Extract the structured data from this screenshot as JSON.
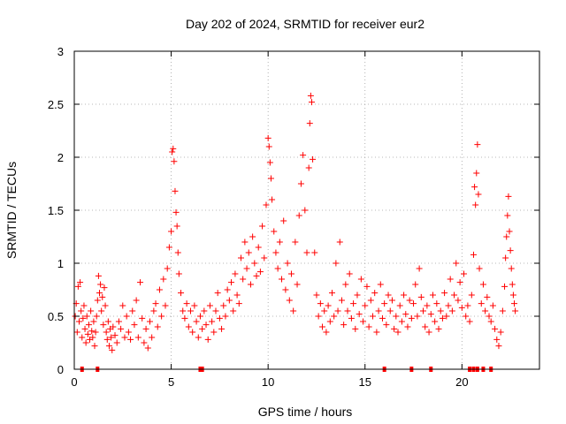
{
  "chart_data": {
    "type": "scatter",
    "title": "Day 202 of 2024, SRMTID for receiver eur2",
    "xlabel": "GPS time / hours",
    "ylabel": "SRMTID / TECUs",
    "xlim": [
      0,
      24
    ],
    "ylim": [
      0,
      3
    ],
    "xticks": [
      0,
      5,
      10,
      15,
      20
    ],
    "yticks": [
      0,
      0.5,
      1,
      1.5,
      2,
      2.5,
      3
    ],
    "xtick_labels": [
      "0",
      "5",
      "10",
      "15",
      "20"
    ],
    "ytick_labels": [
      "0",
      "0.5",
      "1",
      "1.5",
      "2",
      "2.5",
      "3"
    ],
    "grid": true,
    "marker": "+",
    "color": "#ff0000",
    "series": [
      {
        "name": "eur2",
        "points": [
          [
            0.05,
            0.5
          ],
          [
            0.1,
            0.62
          ],
          [
            0.15,
            0.35
          ],
          [
            0.2,
            0.78
          ],
          [
            0.25,
            0.45
          ],
          [
            0.3,
            0.82
          ],
          [
            0.35,
            0.55
          ],
          [
            0.4,
            0.3
          ],
          [
            0.45,
            0.48
          ],
          [
            0.5,
            0.6
          ],
          [
            0.55,
            0.38
          ],
          [
            0.6,
            0.25
          ],
          [
            0.65,
            0.5
          ],
          [
            0.7,
            0.33
          ],
          [
            0.75,
            0.42
          ],
          [
            0.8,
            0.28
          ],
          [
            0.85,
            0.55
          ],
          [
            0.9,
            0.36
          ],
          [
            0.95,
            0.3
          ],
          [
            1.0,
            0.45
          ],
          [
            1.05,
            0.22
          ],
          [
            1.1,
            0.35
          ],
          [
            1.15,
            0.5
          ],
          [
            1.2,
            0.65
          ],
          [
            1.25,
            0.88
          ],
          [
            1.3,
            0.72
          ],
          [
            1.35,
            0.8
          ],
          [
            1.4,
            0.55
          ],
          [
            1.45,
            0.68
          ],
          [
            1.5,
            0.42
          ],
          [
            1.55,
            0.77
          ],
          [
            1.6,
            0.6
          ],
          [
            1.65,
            0.35
          ],
          [
            1.7,
            0.28
          ],
          [
            1.75,
            0.45
          ],
          [
            1.8,
            0.22
          ],
          [
            1.85,
            0.38
          ],
          [
            1.9,
            0.3
          ],
          [
            1.95,
            0.18
          ],
          [
            2.0,
            0.4
          ],
          [
            2.1,
            0.32
          ],
          [
            2.2,
            0.25
          ],
          [
            2.3,
            0.45
          ],
          [
            2.4,
            0.38
          ],
          [
            2.5,
            0.6
          ],
          [
            2.6,
            0.3
          ],
          [
            2.7,
            0.5
          ],
          [
            2.8,
            0.35
          ],
          [
            2.9,
            0.28
          ],
          [
            3.0,
            0.55
          ],
          [
            3.1,
            0.42
          ],
          [
            3.2,
            0.65
          ],
          [
            3.3,
            0.3
          ],
          [
            3.4,
            0.82
          ],
          [
            3.5,
            0.48
          ],
          [
            3.6,
            0.25
          ],
          [
            3.7,
            0.38
          ],
          [
            3.8,
            0.2
          ],
          [
            3.9,
            0.45
          ],
          [
            4.0,
            0.3
          ],
          [
            4.1,
            0.55
          ],
          [
            4.2,
            0.62
          ],
          [
            4.3,
            0.4
          ],
          [
            4.4,
            0.75
          ],
          [
            4.5,
            0.5
          ],
          [
            4.6,
            0.85
          ],
          [
            4.7,
            0.6
          ],
          [
            4.8,
            0.95
          ],
          [
            4.9,
            1.15
          ],
          [
            5.0,
            1.3
          ],
          [
            5.05,
            2.05
          ],
          [
            5.1,
            2.08
          ],
          [
            5.15,
            1.96
          ],
          [
            5.2,
            1.68
          ],
          [
            5.25,
            1.48
          ],
          [
            5.3,
            1.35
          ],
          [
            5.35,
            1.1
          ],
          [
            5.4,
            0.9
          ],
          [
            5.5,
            0.72
          ],
          [
            5.6,
            0.55
          ],
          [
            5.7,
            0.48
          ],
          [
            5.8,
            0.62
          ],
          [
            5.9,
            0.4
          ],
          [
            6.0,
            0.55
          ],
          [
            6.1,
            0.35
          ],
          [
            6.2,
            0.6
          ],
          [
            6.3,
            0.45
          ],
          [
            6.4,
            0.3
          ],
          [
            6.5,
            0.5
          ],
          [
            6.6,
            0.38
          ],
          [
            6.7,
            0.55
          ],
          [
            6.8,
            0.42
          ],
          [
            6.9,
            0.28
          ],
          [
            7.0,
            0.6
          ],
          [
            7.1,
            0.45
          ],
          [
            7.2,
            0.35
          ],
          [
            7.3,
            0.55
          ],
          [
            7.4,
            0.72
          ],
          [
            7.5,
            0.48
          ],
          [
            7.6,
            0.38
          ],
          [
            7.7,
            0.6
          ],
          [
            7.8,
            0.5
          ],
          [
            7.9,
            0.75
          ],
          [
            8.0,
            0.65
          ],
          [
            8.1,
            0.82
          ],
          [
            8.2,
            0.55
          ],
          [
            8.3,
            0.9
          ],
          [
            8.4,
            0.7
          ],
          [
            8.5,
            0.62
          ],
          [
            8.6,
            1.05
          ],
          [
            8.7,
            0.85
          ],
          [
            8.8,
            1.2
          ],
          [
            8.9,
            0.95
          ],
          [
            9.0,
            1.1
          ],
          [
            9.1,
            0.8
          ],
          [
            9.2,
            1.25
          ],
          [
            9.3,
            1.0
          ],
          [
            9.4,
            0.88
          ],
          [
            9.5,
            1.15
          ],
          [
            9.6,
            0.92
          ],
          [
            9.7,
            1.35
          ],
          [
            9.8,
            1.05
          ],
          [
            9.9,
            1.55
          ],
          [
            10.0,
            2.18
          ],
          [
            10.05,
            2.1
          ],
          [
            10.1,
            1.95
          ],
          [
            10.15,
            1.8
          ],
          [
            10.2,
            1.6
          ],
          [
            10.3,
            1.3
          ],
          [
            10.4,
            1.1
          ],
          [
            10.5,
            0.95
          ],
          [
            10.6,
            1.2
          ],
          [
            10.7,
            0.85
          ],
          [
            10.8,
            1.4
          ],
          [
            10.9,
            0.75
          ],
          [
            11.0,
            1.0
          ],
          [
            11.1,
            0.65
          ],
          [
            11.2,
            0.9
          ],
          [
            11.3,
            0.55
          ],
          [
            11.4,
            1.2
          ],
          [
            11.5,
            0.8
          ],
          [
            11.6,
            1.45
          ],
          [
            11.7,
            1.75
          ],
          [
            11.8,
            2.02
          ],
          [
            11.9,
            1.5
          ],
          [
            12.0,
            1.1
          ],
          [
            12.1,
            1.9
          ],
          [
            12.15,
            2.32
          ],
          [
            12.2,
            2.58
          ],
          [
            12.25,
            2.52
          ],
          [
            12.3,
            1.98
          ],
          [
            12.4,
            1.1
          ],
          [
            12.5,
            0.7
          ],
          [
            12.6,
            0.5
          ],
          [
            12.7,
            0.62
          ],
          [
            12.8,
            0.4
          ],
          [
            12.9,
            0.55
          ],
          [
            13.0,
            0.35
          ],
          [
            13.1,
            0.6
          ],
          [
            13.2,
            0.45
          ],
          [
            13.3,
            0.72
          ],
          [
            13.4,
            0.5
          ],
          [
            13.5,
            1.0
          ],
          [
            13.6,
            0.55
          ],
          [
            13.7,
            1.2
          ],
          [
            13.8,
            0.65
          ],
          [
            13.9,
            0.42
          ],
          [
            14.0,
            0.8
          ],
          [
            14.1,
            0.55
          ],
          [
            14.2,
            0.9
          ],
          [
            14.3,
            0.48
          ],
          [
            14.4,
            0.62
          ],
          [
            14.5,
            0.38
          ],
          [
            14.6,
            0.7
          ],
          [
            14.7,
            0.52
          ],
          [
            14.8,
            0.85
          ],
          [
            14.9,
            0.45
          ],
          [
            15.0,
            0.6
          ],
          [
            15.1,
            0.78
          ],
          [
            15.2,
            0.4
          ],
          [
            15.3,
            0.65
          ],
          [
            15.4,
            0.5
          ],
          [
            15.5,
            0.72
          ],
          [
            15.6,
            0.35
          ],
          [
            15.7,
            0.55
          ],
          [
            15.8,
            0.8
          ],
          [
            15.9,
            0.48
          ],
          [
            16.0,
            0.62
          ],
          [
            16.1,
            0.42
          ],
          [
            16.2,
            0.7
          ],
          [
            16.3,
            0.55
          ],
          [
            16.4,
            0.65
          ],
          [
            16.5,
            0.38
          ],
          [
            16.6,
            0.5
          ],
          [
            16.7,
            0.35
          ],
          [
            16.8,
            0.6
          ],
          [
            16.9,
            0.45
          ],
          [
            17.0,
            0.7
          ],
          [
            17.1,
            0.52
          ],
          [
            17.2,
            0.4
          ],
          [
            17.3,
            0.65
          ],
          [
            17.4,
            0.48
          ],
          [
            17.5,
            0.62
          ],
          [
            17.6,
            0.8
          ],
          [
            17.7,
            0.5
          ],
          [
            17.8,
            0.95
          ],
          [
            17.9,
            0.68
          ],
          [
            18.0,
            0.55
          ],
          [
            18.1,
            0.4
          ],
          [
            18.2,
            0.6
          ],
          [
            18.3,
            0.35
          ],
          [
            18.4,
            0.52
          ],
          [
            18.5,
            0.7
          ],
          [
            18.6,
            0.45
          ],
          [
            18.7,
            0.62
          ],
          [
            18.8,
            0.38
          ],
          [
            18.9,
            0.55
          ],
          [
            19.0,
            0.48
          ],
          [
            19.1,
            0.72
          ],
          [
            19.2,
            0.5
          ],
          [
            19.3,
            0.6
          ],
          [
            19.4,
            0.85
          ],
          [
            19.5,
            0.55
          ],
          [
            19.6,
            0.7
          ],
          [
            19.7,
            1.0
          ],
          [
            19.8,
            0.65
          ],
          [
            19.9,
            0.82
          ],
          [
            20.0,
            0.58
          ],
          [
            20.1,
            0.9
          ],
          [
            20.2,
            0.5
          ],
          [
            20.3,
            0.6
          ],
          [
            20.4,
            0.45
          ],
          [
            20.5,
            0.7
          ],
          [
            20.6,
            1.08
          ],
          [
            20.65,
            1.72
          ],
          [
            20.7,
            1.55
          ],
          [
            20.75,
            1.85
          ],
          [
            20.8,
            2.12
          ],
          [
            20.85,
            1.65
          ],
          [
            20.9,
            0.95
          ],
          [
            21.0,
            0.62
          ],
          [
            21.1,
            0.8
          ],
          [
            21.2,
            0.55
          ],
          [
            21.3,
            0.68
          ],
          [
            21.4,
            0.5
          ],
          [
            21.5,
            0.45
          ],
          [
            21.6,
            0.6
          ],
          [
            21.7,
            0.38
          ],
          [
            21.8,
            0.28
          ],
          [
            21.9,
            0.22
          ],
          [
            22.0,
            0.35
          ],
          [
            22.1,
            0.55
          ],
          [
            22.2,
            0.78
          ],
          [
            22.25,
            1.05
          ],
          [
            22.3,
            1.25
          ],
          [
            22.35,
            1.45
          ],
          [
            22.4,
            1.63
          ],
          [
            22.45,
            1.3
          ],
          [
            22.5,
            1.12
          ],
          [
            22.55,
            0.95
          ],
          [
            22.6,
            0.8
          ],
          [
            22.65,
            0.7
          ],
          [
            22.7,
            0.62
          ],
          [
            22.75,
            0.55
          ]
        ]
      }
    ],
    "zero_markers_x": [
      0.4,
      1.2,
      6.5,
      6.6,
      16.0,
      17.4,
      18.4,
      20.4,
      20.6,
      20.8,
      21.1,
      21.5
    ]
  }
}
